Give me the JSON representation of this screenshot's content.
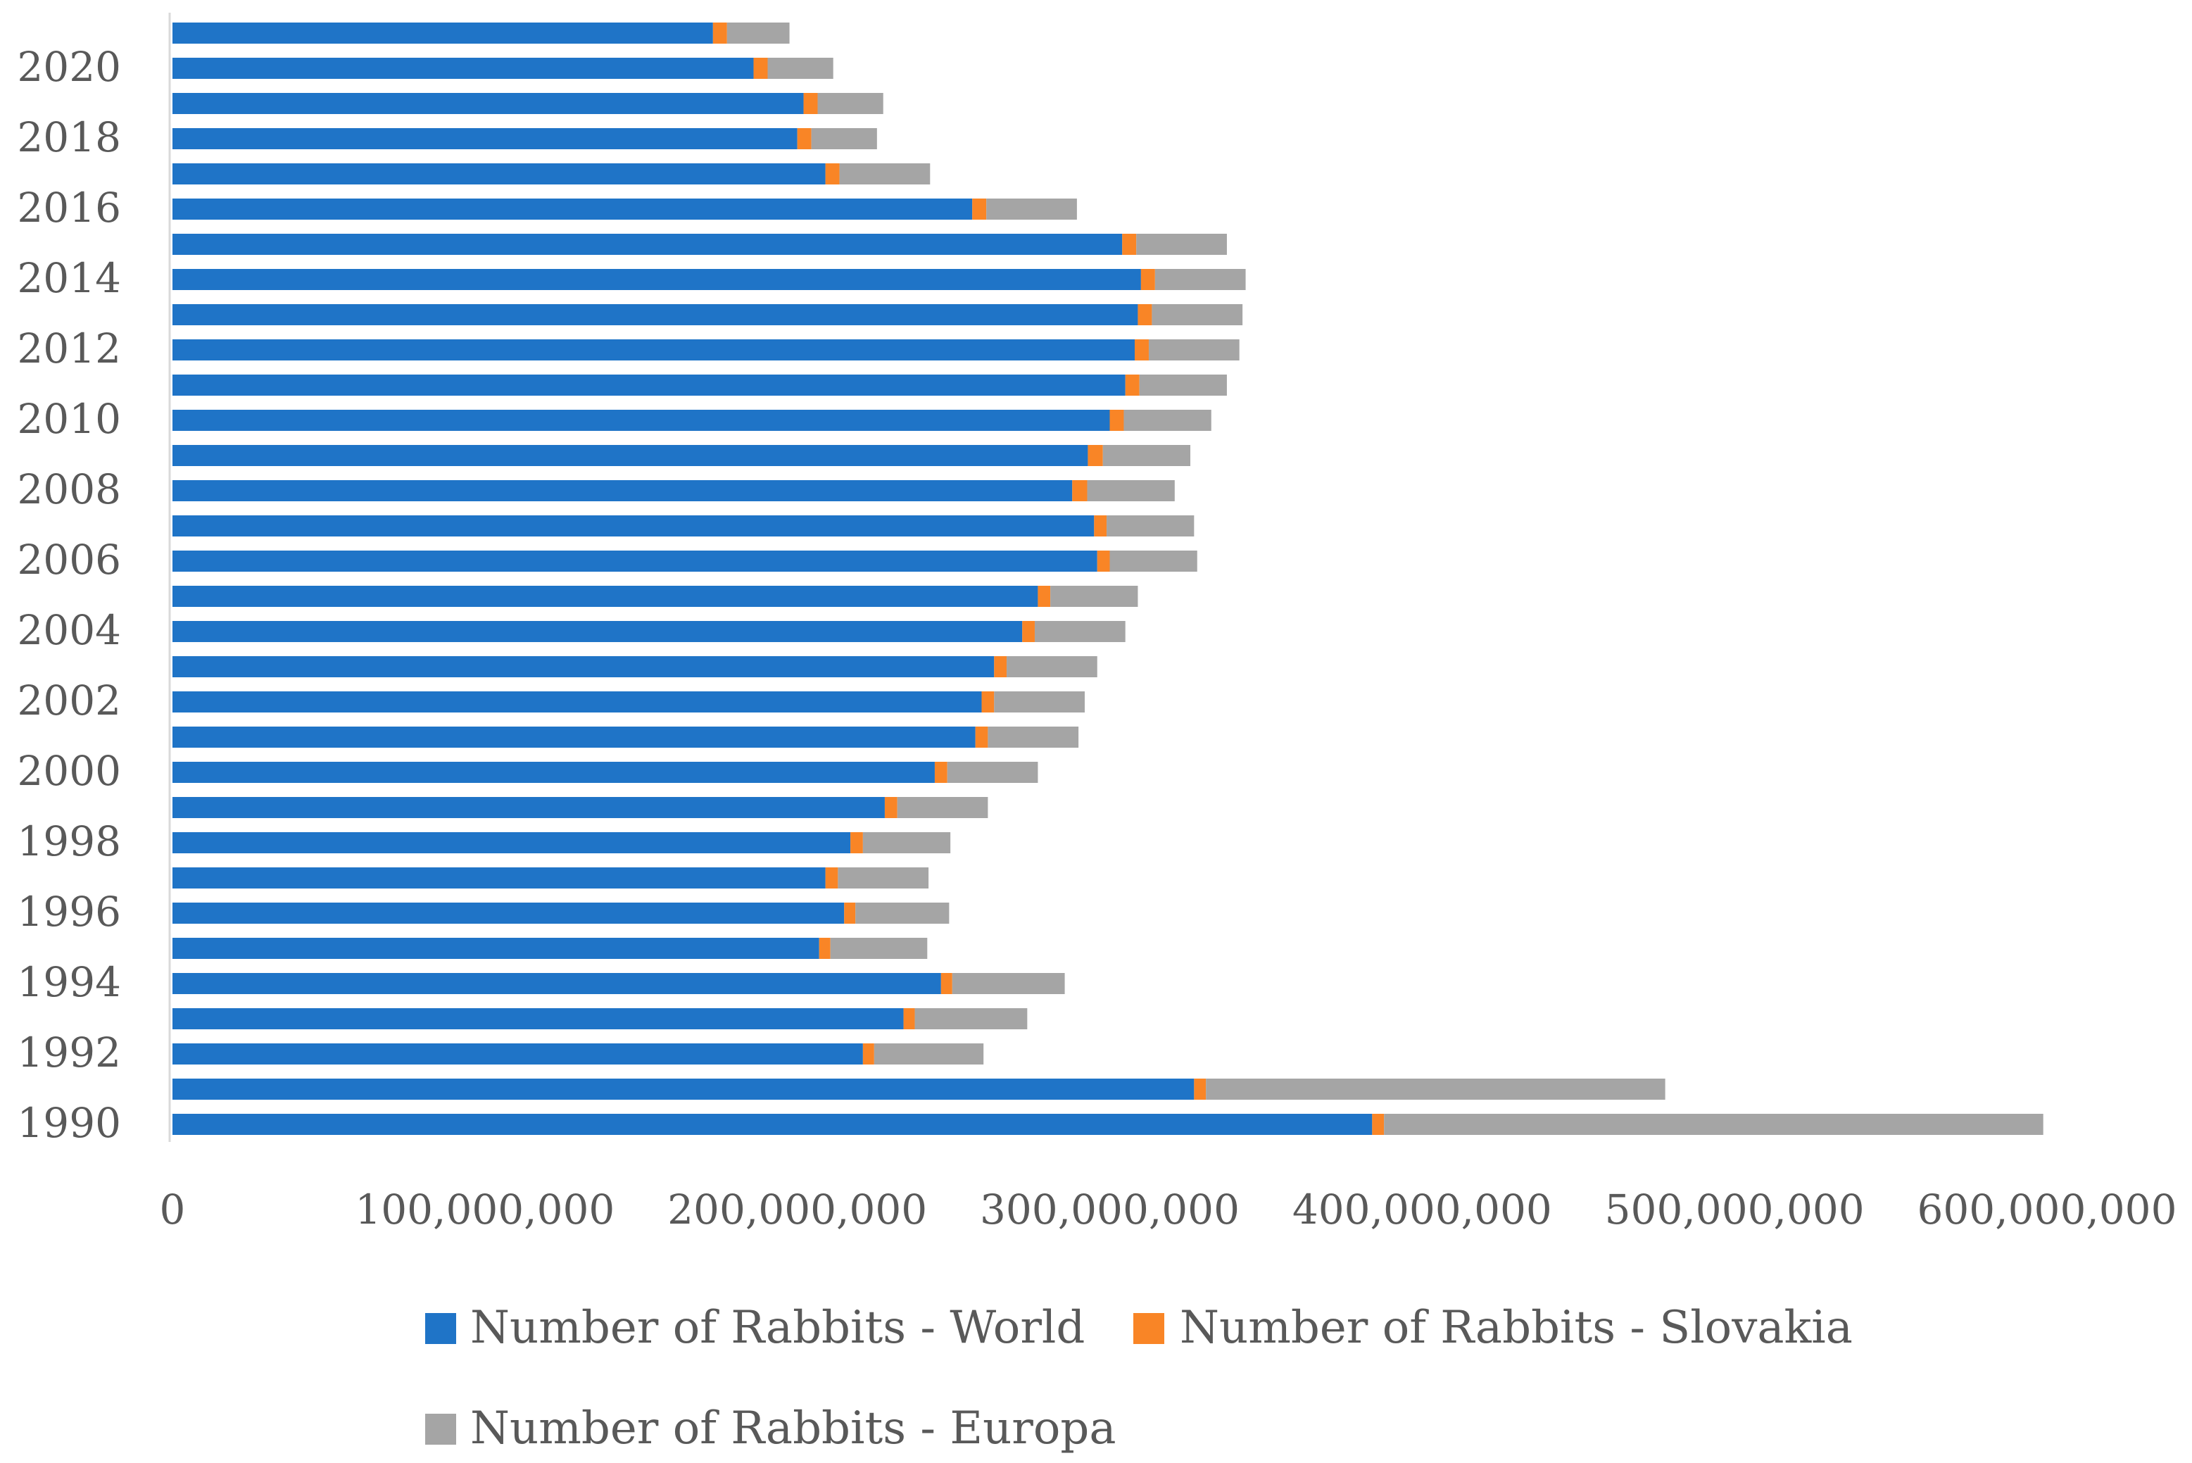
{
  "chart_data": {
    "type": "bar",
    "orientation": "horizontal",
    "stacked": true,
    "title": "",
    "xlabel": "",
    "ylabel": "",
    "xlim": [
      0,
      600000000
    ],
    "x_ticks": [
      0,
      100000000,
      200000000,
      300000000,
      400000000,
      500000000,
      600000000
    ],
    "x_tick_labels": [
      "0",
      "100,000,000",
      "200,000,000",
      "300,000,000",
      "400,000,000",
      "500,000,000",
      "600,000,000"
    ],
    "categories": [
      "1990",
      "1991",
      "1992",
      "1993",
      "1994",
      "1995",
      "1996",
      "1997",
      "1998",
      "1999",
      "2000",
      "2001",
      "2002",
      "2003",
      "2004",
      "2005",
      "2006",
      "2007",
      "2008",
      "2009",
      "2010",
      "2011",
      "2012",
      "2013",
      "2014",
      "2015",
      "2016",
      "2017",
      "2018",
      "2019",
      "2020",
      "2021"
    ],
    "y_tick_labels": [
      "1990",
      "",
      "1992",
      "",
      "1994",
      "",
      "1996",
      "",
      "1998",
      "",
      "2000",
      "",
      "2002",
      "",
      "2004",
      "",
      "2006",
      "",
      "2008",
      "",
      "2010",
      "",
      "2012",
      "",
      "2014",
      "",
      "2016",
      "",
      "2018",
      "",
      "2020",
      ""
    ],
    "series": [
      {
        "name": "Number of Rabbits - World",
        "color": "#1f74c7",
        "values": [
          384000000,
          327000000,
          221000000,
          234000000,
          246000000,
          207000000,
          215000000,
          209000000,
          217000000,
          228000000,
          244000000,
          257000000,
          259000000,
          263000000,
          272000000,
          277000000,
          296000000,
          295000000,
          288000000,
          293000000,
          300000000,
          305000000,
          308000000,
          309000000,
          310000000,
          304000000,
          256000000,
          209000000,
          200000000,
          202000000,
          186000000,
          173000000
        ]
      },
      {
        "name": "Number of Rabbits - Slovakia",
        "color": "#f98526",
        "values": [
          3800000,
          3800000,
          3600000,
          3600000,
          3600000,
          3600000,
          3600000,
          4000000,
          4000000,
          4000000,
          4000000,
          4000000,
          4000000,
          4000000,
          4000000,
          4000000,
          4000000,
          4000000,
          4800000,
          4800000,
          4500000,
          4500000,
          4500000,
          4500000,
          4500000,
          4500000,
          4500000,
          4500000,
          4500000,
          4500000,
          4500000,
          4500000
        ]
      },
      {
        "name": "Number of Rabbits - Europa",
        "color": "#a5a5a5",
        "values": [
          211000000,
          147000000,
          35000000,
          36000000,
          36000000,
          31000000,
          30000000,
          29000000,
          28000000,
          29000000,
          29000000,
          29000000,
          29000000,
          29000000,
          29000000,
          28000000,
          28000000,
          28000000,
          28000000,
          28000000,
          28000000,
          28000000,
          29000000,
          29000000,
          29000000,
          29000000,
          29000000,
          29000000,
          21000000,
          21000000,
          21000000,
          20000000
        ]
      }
    ],
    "legend": {
      "position": "bottom",
      "entries": [
        "Number of Rabbits - World",
        "Number of Rabbits - Slovakia",
        "Number of Rabbits - Europa"
      ]
    },
    "grid": false
  },
  "colors": {
    "axis": "#d9d9d9",
    "label_text": "#595959"
  }
}
